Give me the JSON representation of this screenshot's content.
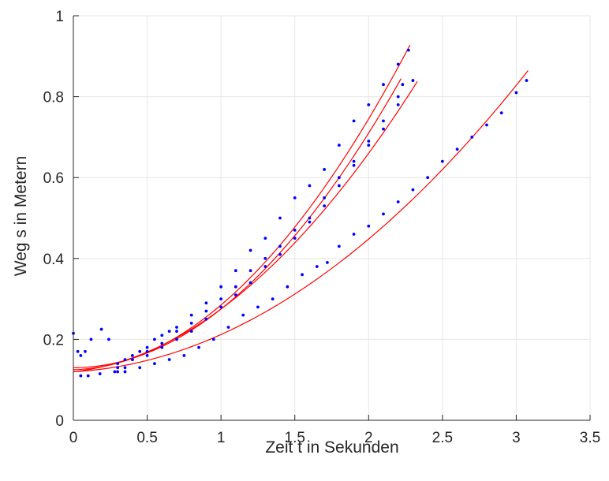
{
  "chart_data": {
    "type": "scatter",
    "title": "",
    "xlabel": "Zeit t in Sekunden",
    "ylabel": "Weg s in Metern",
    "xlim": [
      0,
      3.5
    ],
    "ylim": [
      0,
      1
    ],
    "xticks": [
      0,
      0.5,
      1,
      1.5,
      2,
      2.5,
      3,
      3.5
    ],
    "xtick_labels": [
      "0",
      "0.5",
      "1",
      "1.5",
      "2",
      "2.5",
      "3",
      "3.5"
    ],
    "yticks": [
      0,
      0.2,
      0.4,
      0.6,
      0.8,
      1
    ],
    "ytick_labels": [
      "0",
      "0.2",
      "0.4",
      "0.6",
      "0.8",
      "1"
    ],
    "grid": true,
    "colors": {
      "points": "#0000ff",
      "fit": "#ff0000",
      "grid": "#e6e6e6",
      "axis": "#262626"
    },
    "series": [
      {
        "points": [
          [
            0.0,
            0.215
          ],
          [
            0.03,
            0.17
          ],
          [
            0.05,
            0.16
          ],
          [
            0.08,
            0.17
          ],
          [
            0.12,
            0.2
          ],
          [
            0.19,
            0.225
          ],
          [
            0.24,
            0.2
          ],
          [
            0.3,
            0.14
          ],
          [
            0.35,
            0.15
          ],
          [
            0.4,
            0.16
          ],
          [
            0.45,
            0.17
          ],
          [
            0.5,
            0.18
          ],
          [
            0.55,
            0.2
          ],
          [
            0.6,
            0.21
          ],
          [
            0.65,
            0.22
          ],
          [
            0.7,
            0.23
          ],
          [
            0.8,
            0.26
          ],
          [
            0.9,
            0.29
          ],
          [
            1.0,
            0.33
          ],
          [
            1.1,
            0.37
          ],
          [
            1.2,
            0.42
          ],
          [
            1.3,
            0.45
          ],
          [
            1.4,
            0.5
          ],
          [
            1.5,
            0.55
          ],
          [
            1.6,
            0.58
          ],
          [
            1.7,
            0.62
          ],
          [
            1.8,
            0.68
          ],
          [
            1.9,
            0.74
          ],
          [
            2.0,
            0.78
          ],
          [
            2.1,
            0.83
          ],
          [
            2.2,
            0.88
          ],
          [
            2.27,
            0.915
          ]
        ],
        "fit": [
          0.125,
          0.01,
          0.15
        ]
      },
      {
        "points": [
          [
            0.3,
            0.12
          ],
          [
            0.35,
            0.13
          ],
          [
            0.4,
            0.15
          ],
          [
            0.5,
            0.17
          ],
          [
            0.6,
            0.19
          ],
          [
            0.7,
            0.22
          ],
          [
            0.8,
            0.24
          ],
          [
            0.9,
            0.27
          ],
          [
            1.0,
            0.3
          ],
          [
            1.1,
            0.33
          ],
          [
            1.2,
            0.37
          ],
          [
            1.3,
            0.4
          ],
          [
            1.4,
            0.43
          ],
          [
            1.5,
            0.47
          ],
          [
            1.6,
            0.5
          ],
          [
            1.7,
            0.55
          ],
          [
            1.8,
            0.6
          ],
          [
            1.9,
            0.64
          ],
          [
            2.0,
            0.69
          ],
          [
            2.1,
            0.74
          ],
          [
            2.2,
            0.8
          ],
          [
            2.23,
            0.83
          ]
        ],
        "fit": [
          0.13,
          0.0,
          0.145
        ]
      },
      {
        "points": [
          [
            0.3,
            0.13
          ],
          [
            0.4,
            0.15
          ],
          [
            0.5,
            0.16
          ],
          [
            0.6,
            0.18
          ],
          [
            0.7,
            0.2
          ],
          [
            0.8,
            0.22
          ],
          [
            0.9,
            0.25
          ],
          [
            1.0,
            0.28
          ],
          [
            1.1,
            0.31
          ],
          [
            1.2,
            0.34
          ],
          [
            1.3,
            0.38
          ],
          [
            1.4,
            0.41
          ],
          [
            1.5,
            0.45
          ],
          [
            1.6,
            0.49
          ],
          [
            1.7,
            0.53
          ],
          [
            1.8,
            0.58
          ],
          [
            1.9,
            0.63
          ],
          [
            2.0,
            0.68
          ],
          [
            2.1,
            0.72
          ],
          [
            2.2,
            0.78
          ],
          [
            2.3,
            0.84
          ]
        ],
        "fit": [
          0.12,
          0.04,
          0.115
        ]
      },
      {
        "points": [
          [
            0.05,
            0.11
          ],
          [
            0.1,
            0.11
          ],
          [
            0.18,
            0.115
          ],
          [
            0.28,
            0.12
          ],
          [
            0.35,
            0.12
          ],
          [
            0.45,
            0.13
          ],
          [
            0.55,
            0.14
          ],
          [
            0.65,
            0.15
          ],
          [
            0.75,
            0.16
          ],
          [
            0.85,
            0.18
          ],
          [
            0.95,
            0.2
          ],
          [
            1.05,
            0.23
          ],
          [
            1.15,
            0.26
          ],
          [
            1.25,
            0.28
          ],
          [
            1.35,
            0.3
          ],
          [
            1.45,
            0.33
          ],
          [
            1.55,
            0.36
          ],
          [
            1.65,
            0.38
          ],
          [
            1.72,
            0.39
          ],
          [
            1.8,
            0.43
          ],
          [
            1.9,
            0.46
          ],
          [
            2.0,
            0.48
          ],
          [
            2.1,
            0.51
          ],
          [
            2.2,
            0.54
          ],
          [
            2.3,
            0.57
          ],
          [
            2.4,
            0.6
          ],
          [
            2.5,
            0.64
          ],
          [
            2.6,
            0.67
          ],
          [
            2.7,
            0.7
          ],
          [
            2.8,
            0.73
          ],
          [
            2.9,
            0.76
          ],
          [
            3.0,
            0.81
          ],
          [
            3.07,
            0.84
          ]
        ],
        "fit": [
          0.12,
          0.02,
          0.072
        ]
      }
    ],
    "fit_ranges": [
      [
        0,
        2.28
      ],
      [
        0,
        2.22
      ],
      [
        0,
        2.33
      ],
      [
        0,
        3.08
      ]
    ]
  }
}
